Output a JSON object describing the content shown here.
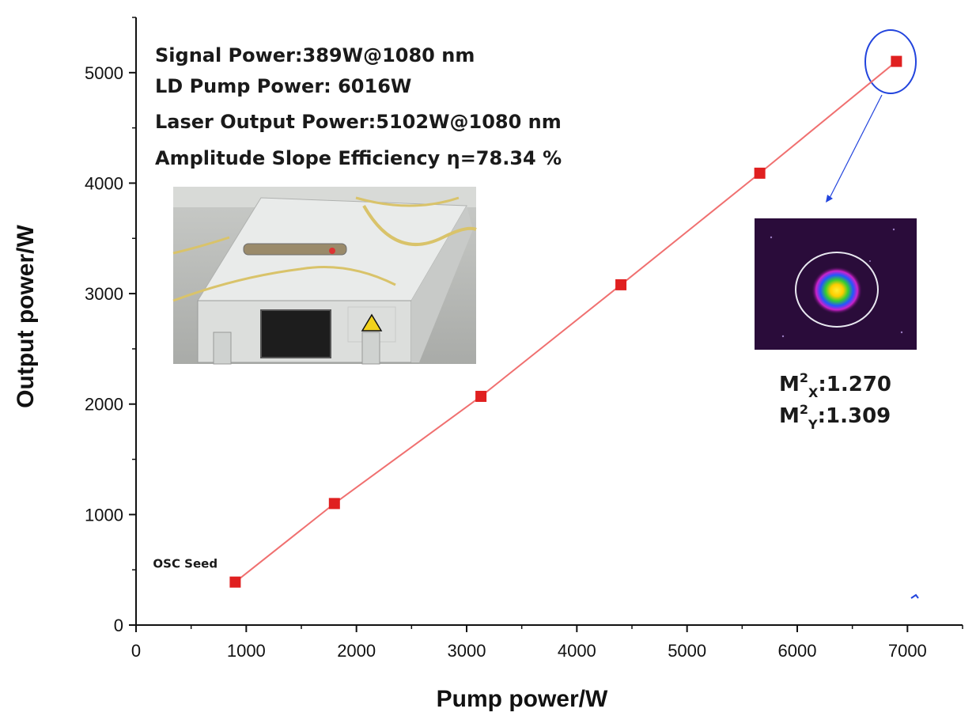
{
  "chart_data": {
    "type": "line",
    "xlabel": "Pump power/W",
    "ylabel": "Output power/W",
    "xlim": [
      0,
      7500
    ],
    "ylim": [
      0,
      5500
    ],
    "x_ticks": [
      "0",
      "1000",
      "2000",
      "3000",
      "4000",
      "5000",
      "6000",
      "7000"
    ],
    "y_ticks": [
      "0",
      "1000",
      "2000",
      "3000",
      "4000",
      "5000"
    ],
    "grid": false,
    "colors": {
      "line": "#f07070",
      "marker": "#e02020",
      "highlight": "#2244dd"
    },
    "series": [
      {
        "x": [
          900,
          1800,
          3130,
          4400,
          5660,
          6900
        ],
        "y": [
          389,
          1100,
          2070,
          3080,
          4090,
          5102
        ]
      }
    ],
    "annotations": {
      "lines": [
        "Signal Power:389W@1080 nm",
        "LD Pump Power: 6016W",
        "Laser Output Power:5102W@1080 nm",
        "Amplitude Slope Efficiency  η=78.34 %"
      ],
      "seed_label": "OSC Seed",
      "m2x": {
        "prefix": "M",
        "sup": "2",
        "sub": "X",
        "value": ":1.270"
      },
      "m2y": {
        "prefix": "M",
        "sup": "2",
        "sub": "Y",
        "value": ":1.309"
      }
    },
    "insets": {
      "photo_icon": "laser-module-photo",
      "beam_icon": "beam-profile-image"
    }
  }
}
